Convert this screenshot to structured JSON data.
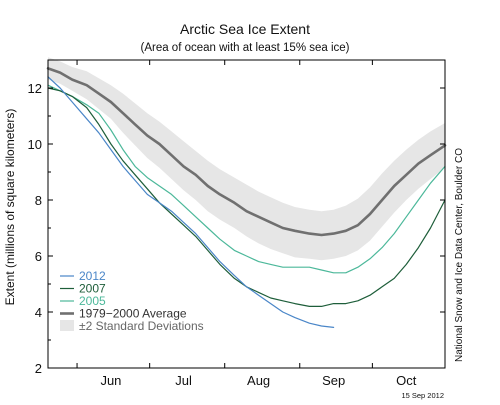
{
  "chart_data": {
    "type": "line",
    "title": "Arctic Sea Ice Extent",
    "subtitle": "(Area of ocean with at least 15% sea ice)",
    "ylabel": "Extent (millions of square kilometers)",
    "xlabel": "",
    "ylim": [
      2,
      13
    ],
    "yticks": [
      2,
      4,
      6,
      8,
      10,
      12
    ],
    "ytick_labels": [
      "2",
      "4",
      "6",
      "8",
      "10",
      "12"
    ],
    "xlim": [
      "2012-05-20",
      "2012-10-31"
    ],
    "xticks": [
      "2012-06-15",
      "2012-07-15",
      "2012-08-15",
      "2012-09-15",
      "2012-10-15"
    ],
    "xtick_labels": [
      "Jun",
      "Jul",
      "Aug",
      "Sep",
      "Oct"
    ],
    "grid": false,
    "legend_position": "bottom-left",
    "series": [
      {
        "name": "2012",
        "color": "#4a86c8",
        "x": [
          "2012-05-20",
          "2012-05-25",
          "2012-05-30",
          "2012-06-05",
          "2012-06-10",
          "2012-06-15",
          "2012-06-20",
          "2012-06-25",
          "2012-06-30",
          "2012-07-05",
          "2012-07-10",
          "2012-07-15",
          "2012-07-20",
          "2012-07-25",
          "2012-07-30",
          "2012-08-05",
          "2012-08-10",
          "2012-08-15",
          "2012-08-20",
          "2012-08-25",
          "2012-08-30",
          "2012-09-05",
          "2012-09-10",
          "2012-09-15"
        ],
        "y": [
          12.4,
          12.0,
          11.5,
          10.9,
          10.4,
          9.8,
          9.2,
          8.7,
          8.2,
          7.9,
          7.6,
          7.2,
          6.8,
          6.3,
          5.8,
          5.3,
          4.9,
          4.6,
          4.3,
          4.0,
          3.8,
          3.6,
          3.5,
          3.45
        ]
      },
      {
        "name": "2007",
        "color": "#1e5e3a",
        "x": [
          "2012-05-20",
          "2012-05-25",
          "2012-05-30",
          "2012-06-05",
          "2012-06-10",
          "2012-06-15",
          "2012-06-20",
          "2012-06-25",
          "2012-06-30",
          "2012-07-05",
          "2012-07-10",
          "2012-07-15",
          "2012-07-20",
          "2012-07-25",
          "2012-07-30",
          "2012-08-05",
          "2012-08-10",
          "2012-08-15",
          "2012-08-20",
          "2012-08-25",
          "2012-08-30",
          "2012-09-05",
          "2012-09-10",
          "2012-09-15",
          "2012-09-20",
          "2012-09-25",
          "2012-09-30",
          "2012-10-05",
          "2012-10-10",
          "2012-10-15",
          "2012-10-20",
          "2012-10-25",
          "2012-10-31"
        ],
        "y": [
          12.0,
          11.9,
          11.7,
          11.3,
          10.7,
          10.0,
          9.4,
          8.9,
          8.4,
          7.9,
          7.5,
          7.1,
          6.7,
          6.2,
          5.7,
          5.2,
          4.9,
          4.7,
          4.5,
          4.4,
          4.3,
          4.2,
          4.2,
          4.3,
          4.3,
          4.4,
          4.6,
          4.9,
          5.2,
          5.7,
          6.3,
          7.0,
          8.0
        ]
      },
      {
        "name": "2005",
        "color": "#4cb89a",
        "x": [
          "2012-05-20",
          "2012-05-25",
          "2012-05-30",
          "2012-06-05",
          "2012-06-10",
          "2012-06-15",
          "2012-06-20",
          "2012-06-25",
          "2012-06-30",
          "2012-07-05",
          "2012-07-10",
          "2012-07-15",
          "2012-07-20",
          "2012-07-25",
          "2012-07-30",
          "2012-08-05",
          "2012-08-10",
          "2012-08-15",
          "2012-08-20",
          "2012-08-25",
          "2012-08-30",
          "2012-09-05",
          "2012-09-10",
          "2012-09-15",
          "2012-09-20",
          "2012-09-25",
          "2012-09-30",
          "2012-10-05",
          "2012-10-10",
          "2012-10-15",
          "2012-10-20",
          "2012-10-25",
          "2012-10-31"
        ],
        "y": [
          12.1,
          11.9,
          11.7,
          11.4,
          11.1,
          10.5,
          9.8,
          9.2,
          8.8,
          8.5,
          8.2,
          7.8,
          7.4,
          7.0,
          6.6,
          6.2,
          6.0,
          5.8,
          5.7,
          5.6,
          5.6,
          5.6,
          5.5,
          5.4,
          5.4,
          5.6,
          5.9,
          6.3,
          6.8,
          7.4,
          8.0,
          8.6,
          9.2
        ]
      },
      {
        "name": "1979−2000 Average",
        "color": "#707070",
        "x": [
          "2012-05-20",
          "2012-05-25",
          "2012-05-30",
          "2012-06-05",
          "2012-06-10",
          "2012-06-15",
          "2012-06-20",
          "2012-06-25",
          "2012-06-30",
          "2012-07-05",
          "2012-07-10",
          "2012-07-15",
          "2012-07-20",
          "2012-07-25",
          "2012-07-30",
          "2012-08-05",
          "2012-08-10",
          "2012-08-15",
          "2012-08-20",
          "2012-08-25",
          "2012-08-30",
          "2012-09-05",
          "2012-09-10",
          "2012-09-15",
          "2012-09-20",
          "2012-09-25",
          "2012-09-30",
          "2012-10-05",
          "2012-10-10",
          "2012-10-15",
          "2012-10-20",
          "2012-10-25",
          "2012-10-31"
        ],
        "y": [
          12.7,
          12.55,
          12.3,
          12.1,
          11.8,
          11.5,
          11.1,
          10.7,
          10.3,
          10.0,
          9.6,
          9.2,
          8.9,
          8.5,
          8.2,
          7.9,
          7.6,
          7.4,
          7.2,
          7.0,
          6.9,
          6.8,
          6.75,
          6.8,
          6.9,
          7.1,
          7.5,
          8.0,
          8.5,
          8.9,
          9.3,
          9.6,
          9.95
        ]
      }
    ],
    "band": {
      "name": "±2 Standard Deviations",
      "color": "#e6e6e6",
      "x": [
        "2012-05-20",
        "2012-05-25",
        "2012-05-30",
        "2012-06-05",
        "2012-06-10",
        "2012-06-15",
        "2012-06-20",
        "2012-06-25",
        "2012-06-30",
        "2012-07-05",
        "2012-07-10",
        "2012-07-15",
        "2012-07-20",
        "2012-07-25",
        "2012-07-30",
        "2012-08-05",
        "2012-08-10",
        "2012-08-15",
        "2012-08-20",
        "2012-08-25",
        "2012-08-30",
        "2012-09-05",
        "2012-09-10",
        "2012-09-15",
        "2012-09-20",
        "2012-09-25",
        "2012-09-30",
        "2012-10-05",
        "2012-10-10",
        "2012-10-15",
        "2012-10-20",
        "2012-10-25",
        "2012-10-31"
      ],
      "upper": [
        13.1,
        12.95,
        12.75,
        12.6,
        12.35,
        12.1,
        11.8,
        11.45,
        11.1,
        10.8,
        10.45,
        10.1,
        9.75,
        9.4,
        9.1,
        8.8,
        8.55,
        8.3,
        8.1,
        7.9,
        7.75,
        7.65,
        7.6,
        7.65,
        7.8,
        8.05,
        8.45,
        8.95,
        9.4,
        9.8,
        10.15,
        10.45,
        10.75
      ],
      "lower": [
        12.3,
        12.15,
        11.9,
        11.6,
        11.25,
        10.9,
        10.4,
        9.95,
        9.5,
        9.15,
        8.75,
        8.35,
        8.0,
        7.6,
        7.3,
        7.0,
        6.7,
        6.45,
        6.25,
        6.1,
        5.95,
        5.9,
        5.85,
        5.9,
        6.0,
        6.2,
        6.55,
        7.05,
        7.55,
        8.0,
        8.4,
        8.75,
        9.15
      ]
    },
    "side_credit": "National Snow and Ice Data Center, Boulder CO",
    "date_stamp": "15 Sep 2012"
  }
}
